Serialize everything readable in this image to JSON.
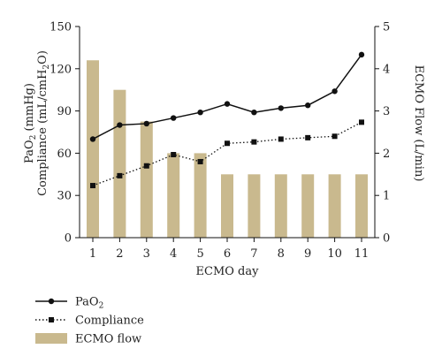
{
  "chart_data": {
    "type": "bar+line",
    "x": [
      1,
      2,
      3,
      4,
      5,
      6,
      7,
      8,
      9,
      10,
      11
    ],
    "xlabel": "ECMO day",
    "y_left": {
      "label_line1_main": "PaO",
      "label_line1_sub": "2",
      "label_line1_rest": " (mmHg)",
      "label_line2_main": "Compliance (mL/cmH",
      "label_line2_sub": "2",
      "label_line2_rest": "O)",
      "ticks": [
        0,
        30,
        60,
        90,
        120,
        150
      ],
      "lim": [
        0,
        150
      ]
    },
    "y_right": {
      "label": "ECMO Flow (L/min)",
      "ticks": [
        0,
        1,
        2,
        3,
        4,
        5
      ],
      "lim": [
        0,
        5
      ]
    },
    "series": [
      {
        "name": "PaO",
        "name_sub": "2",
        "axis": "left",
        "style": "solid-circle",
        "values": [
          70,
          80,
          81,
          85,
          89,
          95,
          89,
          92,
          94,
          104,
          130
        ]
      },
      {
        "name": "Compliance",
        "axis": "left",
        "style": "dotted-square",
        "values": [
          37,
          44,
          51,
          59,
          54,
          67,
          68,
          70,
          71,
          72,
          82
        ]
      },
      {
        "name": "ECMO flow",
        "axis": "right",
        "style": "bar",
        "values": [
          4.2,
          3.5,
          2.75,
          2.0,
          2.0,
          1.5,
          1.5,
          1.5,
          1.5,
          1.5,
          1.5
        ]
      }
    ],
    "colors": {
      "bar": "#c9b98e",
      "line": "#111111"
    },
    "legend_position": "bottom-left",
    "grid": false
  }
}
